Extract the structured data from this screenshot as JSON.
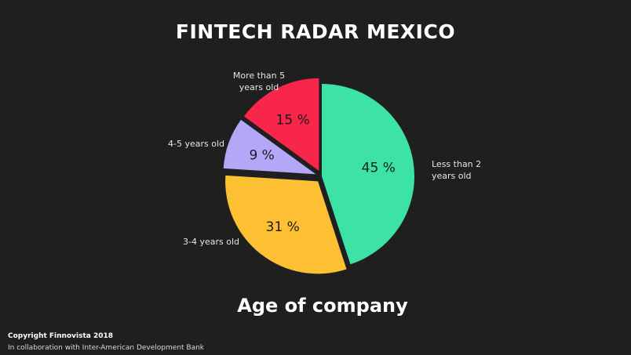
{
  "header": {
    "title": "FINTECH RADAR MEXICO"
  },
  "chart": {
    "subtitle": "Age of company"
  },
  "footer": {
    "copyright": "Copyright Finnovista 2018",
    "collaboration": "In collaboration with Inter-American Development Bank"
  },
  "chart_data": {
    "type": "pie",
    "title": "FINTECH RADAR MEXICO",
    "subtitle": "Age of company",
    "slices": [
      {
        "label": "Less than 2 years old",
        "label_lines": [
          "Less than 2",
          "years old"
        ],
        "value": 45,
        "value_label": "45 %",
        "color": "#3de3a4",
        "exploded": false
      },
      {
        "label": "3-4 years old",
        "label_lines": [
          "3-4 years old"
        ],
        "value": 31,
        "value_label": "31 %",
        "color": "#fdc032",
        "exploded": true
      },
      {
        "label": "4-5 years old",
        "label_lines": [
          "4-5 years old"
        ],
        "value": 9,
        "value_label": "9 %",
        "color": "#b4a7f7",
        "exploded": true
      },
      {
        "label": "More than 5 years old",
        "label_lines": [
          "More than 5",
          "years old"
        ],
        "value": 15,
        "value_label": "15 %",
        "color": "#f7264a",
        "exploded": true
      }
    ],
    "start": "12 o'clock",
    "direction": "clockwise",
    "legend": "none (direct labels)"
  }
}
